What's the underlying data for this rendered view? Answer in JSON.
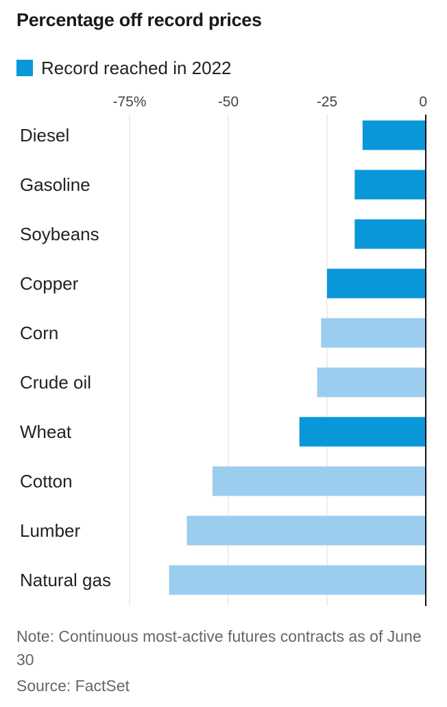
{
  "chart_data": {
    "type": "bar",
    "orientation": "horizontal",
    "title": "Percentage off record prices",
    "legend": [
      {
        "label": "Record reached in 2022",
        "color": "#0a97d9"
      }
    ],
    "colors": {
      "record_2022": "#0a97d9",
      "other": "#9acdee",
      "gridline": "#dddddd",
      "baseline": "#111111"
    },
    "xlim": [
      -75,
      0
    ],
    "ticks": [
      {
        "value": -75,
        "label": "-75%"
      },
      {
        "value": -50,
        "label": "-50"
      },
      {
        "value": -25,
        "label": "-25"
      },
      {
        "value": 0,
        "label": "0"
      }
    ],
    "categories": [
      "Diesel",
      "Gasoline",
      "Soybeans",
      "Copper",
      "Corn",
      "Crude oil",
      "Wheat",
      "Cotton",
      "Lumber",
      "Natural gas"
    ],
    "values": [
      -16,
      -18,
      -18,
      -25,
      -26.5,
      -27.5,
      -32,
      -54,
      -60.5,
      -65
    ],
    "record_2022": [
      true,
      true,
      true,
      true,
      false,
      false,
      true,
      false,
      false,
      false
    ]
  },
  "note": "Note: Continuous most-active futures contracts as of June 30",
  "source": "Source: FactSet"
}
